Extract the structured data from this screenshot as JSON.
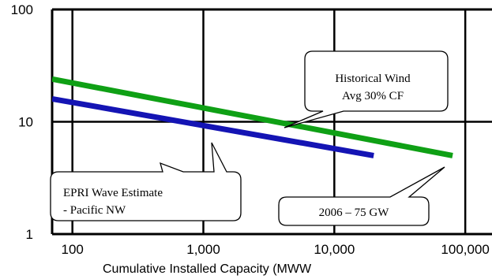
{
  "chart_data": {
    "type": "line",
    "title": "",
    "xlabel": "Cumulative Installed Capacity (MWW",
    "ylabel": "",
    "x_scale": "log",
    "y_scale": "log",
    "xlim": [
      70,
      160000
    ],
    "ylim": [
      1,
      100
    ],
    "x_ticks": [
      "100",
      "1,000",
      "10,000",
      "100,000"
    ],
    "y_ticks": [
      "100",
      "10",
      "1"
    ],
    "grid": true,
    "series": [
      {
        "color": "#0fa015",
        "x": [
          70,
          80000
        ],
        "y": [
          24,
          5
        ]
      },
      {
        "color": "#1414b4",
        "x": [
          70,
          20000
        ],
        "y": [
          16,
          5
        ]
      }
    ],
    "annotations": [
      {
        "lines": [
          "Historical Wind",
          "Avg  30% CF"
        ]
      },
      {
        "lines": [
          "EPRI Wave Estimate",
          "- Pacific NW"
        ]
      },
      {
        "lines": [
          "2006 – 75 GW"
        ]
      }
    ]
  }
}
